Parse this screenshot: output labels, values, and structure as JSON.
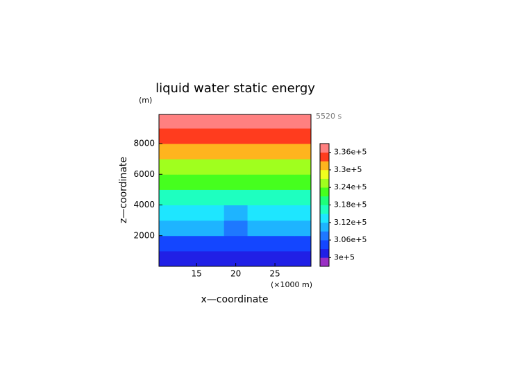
{
  "chart_data": {
    "type": "contour",
    "title": "liquid water static energy",
    "y_unit": "(m)",
    "time_label": "5520 s",
    "x_unit": "(×1000 m)",
    "x_label": "x—coordinate",
    "y_label": "z—coordinate",
    "xlim": [
      10.2,
      29.6
    ],
    "xticks": [
      15,
      20,
      25
    ],
    "ylim": [
      0,
      9900
    ],
    "yticks": [
      2000,
      4000,
      6000,
      8000
    ],
    "x": [
      11,
      14,
      17,
      20,
      23,
      26,
      29
    ],
    "z": [
      500,
      1500,
      2500,
      3500,
      4500,
      5500,
      6500,
      7500,
      8500,
      9500
    ],
    "values": [
      [
        302500,
        302500,
        302000,
        300500,
        302000,
        302500,
        302500
      ],
      [
        305500,
        305000,
        305500,
        303500,
        305500,
        305000,
        305500
      ],
      [
        309500,
        309000,
        309500,
        307500,
        309500,
        309000,
        309500
      ],
      [
        313000,
        312500,
        313000,
        311500,
        313000,
        312500,
        313000
      ],
      [
        317500,
        317500,
        317500,
        316500,
        317500,
        317500,
        317500
      ],
      [
        322000,
        322000,
        322000,
        321500,
        322000,
        322000,
        322000
      ],
      [
        326500,
        326500,
        326500,
        326500,
        326500,
        326500,
        326500
      ],
      [
        331000,
        331000,
        331000,
        331000,
        331000,
        331000,
        331000
      ],
      [
        334500,
        334500,
        334500,
        334500,
        334500,
        334500,
        334500
      ],
      [
        337500,
        337500,
        337500,
        337500,
        337500,
        337500,
        337500
      ]
    ],
    "levels": [
      297000,
      300000,
      303000,
      306000,
      309000,
      312000,
      315000,
      318000,
      321000,
      324000,
      327000,
      330000,
      333000,
      336000,
      339000
    ],
    "level_colors": [
      "#9a2fc4",
      "#2020e6",
      "#1446ff",
      "#1e78ff",
      "#1eb4ff",
      "#1ee6ff",
      "#1effc0",
      "#1eff7a",
      "#46ff1e",
      "#a0ff1e",
      "#f0ff1e",
      "#ffb41e",
      "#ff3c1e",
      "#ff8080"
    ],
    "colorbar_ticks": [
      {
        "value": 300000,
        "label": "3e+5"
      },
      {
        "value": 306000,
        "label": "3.06e+5"
      },
      {
        "value": 312000,
        "label": "3.12e+5"
      },
      {
        "value": 318000,
        "label": "3.18e+5"
      },
      {
        "value": 324000,
        "label": "3.24e+5"
      },
      {
        "value": 330000,
        "label": "3.3e+5"
      },
      {
        "value": 336000,
        "label": "3.36e+5"
      }
    ]
  }
}
